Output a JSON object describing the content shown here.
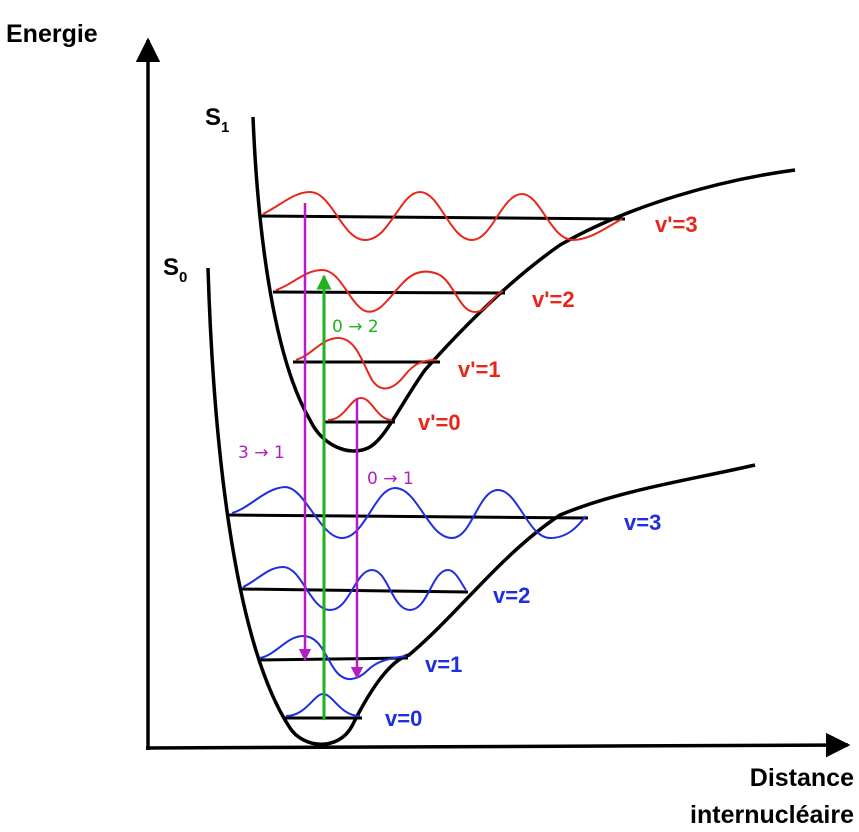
{
  "axes": {
    "y_title": "Energie",
    "x_title_line1": "Distance",
    "x_title_line2": "internucléaire"
  },
  "states": {
    "excited": {
      "letter": "S",
      "subscript": "1",
      "color": "#000000"
    },
    "ground": {
      "letter": "S",
      "subscript": "0",
      "color": "#000000"
    }
  },
  "levels": {
    "excited": {
      "color": "#e8271b",
      "items": [
        {
          "label": "v'=0"
        },
        {
          "label": "v'=1"
        },
        {
          "label": "v'=2"
        },
        {
          "label": "v'=3"
        }
      ]
    },
    "ground": {
      "color": "#1f2fe0",
      "items": [
        {
          "label": "v=0"
        },
        {
          "label": "v=1"
        },
        {
          "label": "v=2"
        },
        {
          "label": "v=3"
        }
      ]
    }
  },
  "transitions": [
    {
      "label": "0 → 2",
      "kind": "absorption",
      "color": "#22b21f"
    },
    {
      "label": "3 → 1",
      "kind": "emission",
      "color": "#b41cc4"
    },
    {
      "label": "0 → 1",
      "kind": "emission",
      "color": "#b41cc4"
    }
  ]
}
